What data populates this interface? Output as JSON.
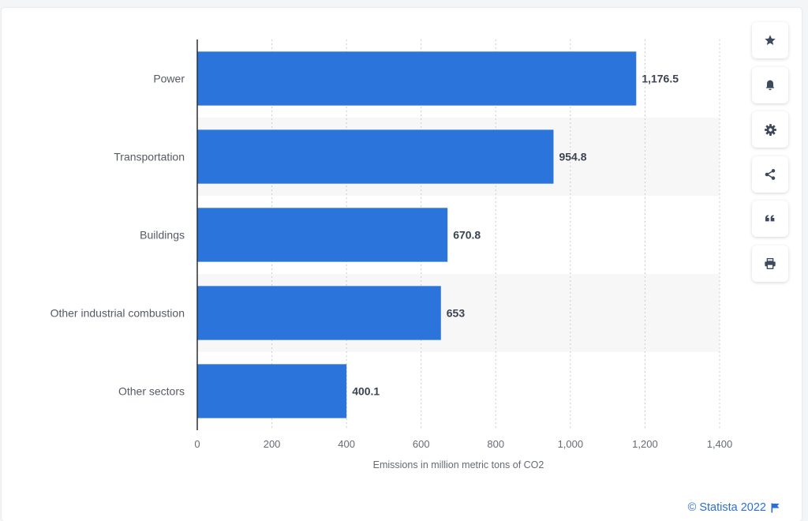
{
  "chart_data": {
    "type": "bar",
    "orientation": "horizontal",
    "categories": [
      "Power",
      "Transportation",
      "Buildings",
      "Other industrial combustion",
      "Other sectors"
    ],
    "values": [
      1176.5,
      954.8,
      670.8,
      653,
      400.1
    ],
    "value_labels": [
      "1,176.5",
      "954.8",
      "670.8",
      "653",
      "400.1"
    ],
    "xlabel": "Emissions in million metric tons of CO2",
    "xlim": [
      0,
      1400
    ],
    "xticks": [
      0,
      200,
      400,
      600,
      800,
      1000,
      1200,
      1400
    ],
    "xtick_labels": [
      "0",
      "200",
      "400",
      "600",
      "800",
      "1,000",
      "1,200",
      "1,400"
    ],
    "grid": "vertical dotted",
    "bar_color": "#2a74db",
    "band_color": "#f7f7f7"
  },
  "toolbar": {
    "buttons": [
      {
        "name": "favorite-button",
        "icon": "star-icon"
      },
      {
        "name": "notification-button",
        "icon": "bell-icon"
      },
      {
        "name": "settings-button",
        "icon": "gear-icon"
      },
      {
        "name": "share-button",
        "icon": "share-icon"
      },
      {
        "name": "cite-button",
        "icon": "quote-icon"
      },
      {
        "name": "print-button",
        "icon": "print-icon"
      }
    ]
  },
  "credit": {
    "text": "© Statista 2022",
    "icon": "flag-icon"
  }
}
